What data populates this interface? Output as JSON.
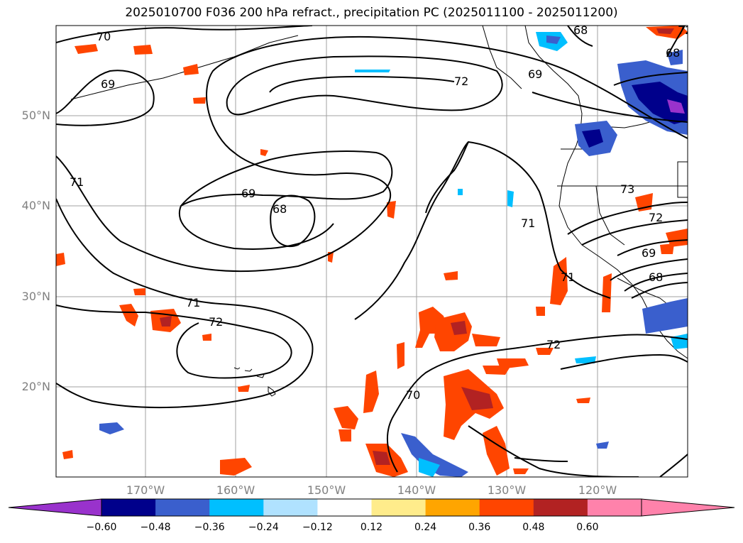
{
  "title": "2025010700 F036 200 hPa refract., precipitation PC (2025011100 - 2025011200)",
  "map": {
    "lat_labels": [
      "50°N",
      "40°N",
      "30°N",
      "20°N"
    ],
    "lon_labels": [
      "170°W",
      "160°W",
      "150°W",
      "140°W",
      "130°W",
      "120°W"
    ],
    "contour_labels": [
      "70",
      "69",
      "71",
      "69",
      "68",
      "71",
      "72",
      "72",
      "70",
      "69",
      "72",
      "68",
      "68",
      "71",
      "72",
      "73",
      "72",
      "69",
      "68",
      "71"
    ]
  },
  "colorbar": {
    "ticks": [
      "−0.60",
      "−0.48",
      "−0.36",
      "−0.24",
      "−0.12",
      "0.12",
      "0.24",
      "0.36",
      "0.48",
      "0.60"
    ],
    "colors": [
      "#9932cc",
      "#00008b",
      "#3a5fcd",
      "#00bfff",
      "#b0e2ff",
      "#ffffff",
      "#ffec8b",
      "#ffa500",
      "#ff4500",
      "#b22222",
      "#ff82ab",
      "#ff82ab"
    ]
  }
}
